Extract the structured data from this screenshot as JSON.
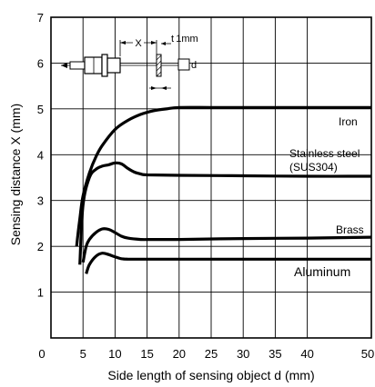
{
  "chart_data": {
    "type": "line",
    "xlabel": "Side length of sensing object d (mm)",
    "ylabel": "Sensing distance X (mm)",
    "xlim": [
      0,
      50
    ],
    "ylim": [
      0,
      7
    ],
    "xticks": [
      "0",
      "5",
      "10",
      "15",
      "20",
      "25",
      "30",
      "35",
      "40",
      "50"
    ],
    "yticks": [
      "1",
      "2",
      "3",
      "4",
      "5",
      "6",
      "7"
    ],
    "grid": true,
    "series": [
      {
        "name": "Iron",
        "x": [
          4,
          4.5,
          5,
          6,
          7,
          8,
          10,
          12,
          14,
          16,
          18,
          20,
          25,
          30,
          40,
          50
        ],
        "y": [
          2.0,
          2.6,
          3.1,
          3.6,
          3.95,
          4.2,
          4.55,
          4.75,
          4.88,
          4.96,
          5.0,
          5.03,
          5.03,
          5.03,
          5.03,
          5.03
        ]
      },
      {
        "name": "Stainless steel\n(SUS304)",
        "x": [
          4.5,
          5,
          6,
          7,
          8,
          9,
          10,
          11,
          12,
          13,
          14,
          15,
          20,
          30,
          40,
          50
        ],
        "y": [
          1.6,
          2.9,
          3.5,
          3.68,
          3.75,
          3.78,
          3.82,
          3.8,
          3.7,
          3.62,
          3.58,
          3.56,
          3.55,
          3.54,
          3.53,
          3.53
        ]
      },
      {
        "name": "Brass",
        "x": [
          5,
          5.5,
          6,
          7,
          8,
          9,
          10,
          11,
          12,
          14,
          16,
          20,
          30,
          40,
          50
        ],
        "y": [
          1.65,
          2.0,
          2.15,
          2.3,
          2.38,
          2.37,
          2.3,
          2.22,
          2.18,
          2.15,
          2.15,
          2.15,
          2.17,
          2.18,
          2.2
        ]
      },
      {
        "name": "Aluminum",
        "x": [
          5.5,
          6,
          7,
          8,
          9,
          10,
          11,
          12,
          14,
          16,
          20,
          30,
          40,
          50
        ],
        "y": [
          1.4,
          1.6,
          1.78,
          1.85,
          1.82,
          1.77,
          1.73,
          1.72,
          1.72,
          1.72,
          1.72,
          1.72,
          1.72,
          1.72
        ]
      }
    ],
    "inset": {
      "x_label": "X",
      "t_label": "t 1mm",
      "d_label": "d"
    }
  }
}
